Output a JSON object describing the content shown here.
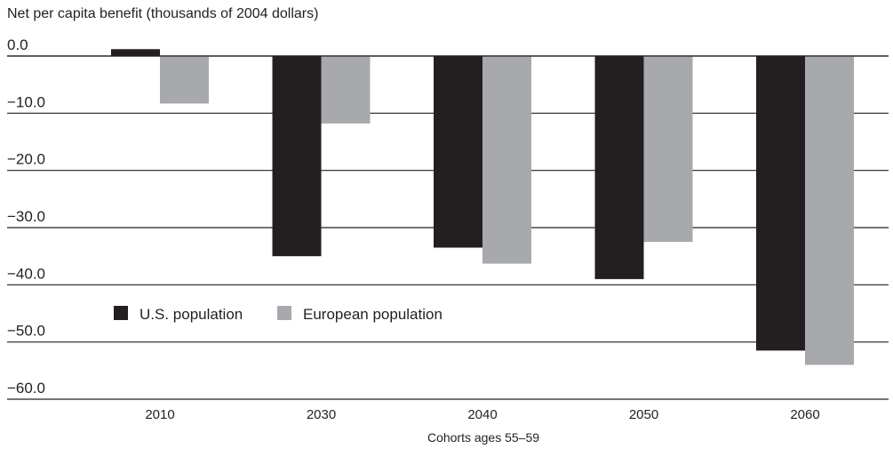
{
  "chart_data": {
    "type": "bar",
    "ylabel": "Net per capita benefit (thousands of 2004 dollars)",
    "xlabel": "Cohorts ages 55–59",
    "categories": [
      "2010",
      "2030",
      "2040",
      "2050",
      "2060"
    ],
    "series": [
      {
        "name": "U.S. population",
        "color": "#231f20",
        "values": [
          1.2,
          -35.0,
          -33.5,
          -39.0,
          -51.5
        ]
      },
      {
        "name": "European population",
        "color": "#a7a9ac",
        "values": [
          -8.3,
          -11.8,
          -36.3,
          -32.5,
          -54.0
        ]
      }
    ],
    "ylim": [
      -60,
      0
    ],
    "yticks": [
      0,
      -10,
      -20,
      -30,
      -40,
      -50,
      -60
    ],
    "ytick_labels": [
      "0.0",
      "−10.0",
      "−20.0",
      "−30.0",
      "−40.0",
      "−50.0",
      "−60.0"
    ],
    "grid": true,
    "legend_position": "inside-lower-left"
  }
}
